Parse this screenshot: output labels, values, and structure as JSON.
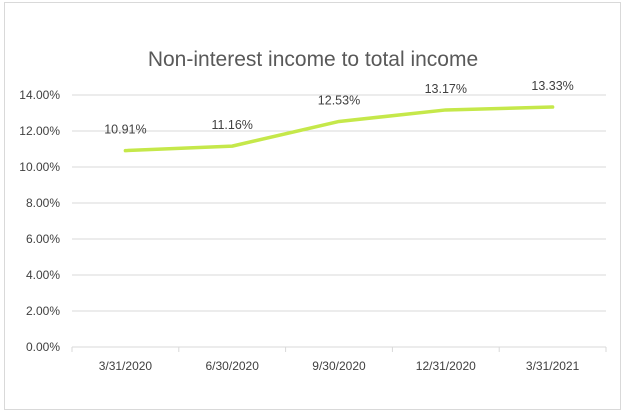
{
  "chart_data": {
    "type": "line",
    "title": "Non-interest income to total income",
    "categories": [
      "3/31/2020",
      "6/30/2020",
      "9/30/2020",
      "12/31/2020",
      "3/31/2021"
    ],
    "series": [
      {
        "values": [
          10.91,
          11.16,
          12.53,
          13.17,
          13.33
        ],
        "labels": [
          "10.91%",
          "11.16%",
          "12.53%",
          "13.17%",
          "13.33%"
        ]
      }
    ],
    "yticks": [
      "0.00%",
      "2.00%",
      "4.00%",
      "6.00%",
      "8.00%",
      "10.00%",
      "12.00%",
      "14.00%"
    ],
    "ytick_values": [
      0,
      2,
      4,
      6,
      8,
      10,
      12,
      14
    ],
    "ylim": [
      0,
      14
    ],
    "grid": true,
    "legend": "none",
    "line_color": "#c5e84a",
    "grid_color": "#d9d9d9"
  }
}
